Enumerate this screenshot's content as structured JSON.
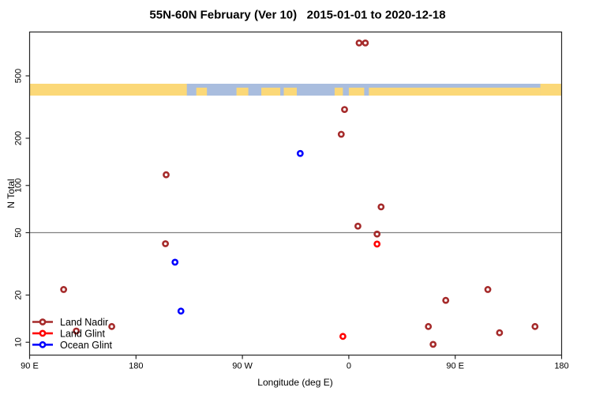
{
  "chart": {
    "title": "55N-60N February (Ver 10)   2015-01-01 to 2020-12-18",
    "xlabel": "Longitude (deg E)",
    "ylabel": "N Total"
  },
  "chart_data": {
    "type": "scatter",
    "title": "55N-60N February (Ver 10)   2015-01-01 to 2020-12-18",
    "xlabel": "Longitude (deg E)",
    "ylabel": "N Total",
    "x_axis": {
      "wrapped_longitude": true,
      "range": [
        90,
        540
      ],
      "ticks": [
        {
          "lon": 90,
          "label": "90 E"
        },
        {
          "lon": 180,
          "label": "180"
        },
        {
          "lon": 270,
          "label": "90 W"
        },
        {
          "lon": 360,
          "label": "0"
        },
        {
          "lon": 450,
          "label": "90 E"
        },
        {
          "lon": 540,
          "label": "180"
        }
      ]
    },
    "y_axis": {
      "scale": "log",
      "range": [
        8.2,
        960
      ],
      "ticks": [
        {
          "n": 500,
          "label": "500"
        },
        {
          "n": 200,
          "label": "200"
        },
        {
          "n": 100,
          "label": "100"
        },
        {
          "n": 50,
          "label": "50"
        },
        {
          "n": 20,
          "label": "20"
        },
        {
          "n": 10,
          "label": "10"
        }
      ]
    },
    "reference_line_n": 50,
    "map_band": {
      "n_range": [
        374,
        445
      ],
      "ocean_color": "#A9BDDE",
      "land_color": "#FBD878",
      "segments": [
        {
          "from": 90,
          "to": 223,
          "row": "full"
        },
        {
          "from": 231,
          "to": 240,
          "row": "bottom"
        },
        {
          "from": 265,
          "to": 275,
          "row": "bottom"
        },
        {
          "from": 286,
          "to": 302,
          "row": "bottom"
        },
        {
          "from": 305,
          "to": 316,
          "row": "bottom"
        },
        {
          "from": 348,
          "to": 355,
          "row": "bottom"
        },
        {
          "from": 360,
          "to": 373,
          "row": "bottom"
        },
        {
          "from": 377,
          "to": 522,
          "row": "bottom"
        },
        {
          "from": 522,
          "to": 540,
          "row": "full"
        }
      ]
    },
    "series": [
      {
        "name": "Land Nadir",
        "color": "#A52A2A",
        "points": [
          {
            "lon": 368.7,
            "n": 810
          },
          {
            "lon": 374.0,
            "n": 810
          },
          {
            "lon": 356.4,
            "n": 305
          },
          {
            "lon": 353.6,
            "n": 212
          },
          {
            "lon": 205.5,
            "n": 117
          },
          {
            "lon": 387.3,
            "n": 73
          },
          {
            "lon": 367.7,
            "n": 55
          },
          {
            "lon": 383.9,
            "n": 49
          },
          {
            "lon": 204.9,
            "n": 42.5
          },
          {
            "lon": 118.8,
            "n": 21.7
          },
          {
            "lon": 477.6,
            "n": 21.7
          },
          {
            "lon": 442.0,
            "n": 18.5
          },
          {
            "lon": 159.5,
            "n": 12.6
          },
          {
            "lon": 427.3,
            "n": 12.6
          },
          {
            "lon": 517.5,
            "n": 12.6
          },
          {
            "lon": 129.5,
            "n": 11.8
          },
          {
            "lon": 487.5,
            "n": 11.5
          },
          {
            "lon": 431.3,
            "n": 9.7
          }
        ]
      },
      {
        "name": "Land Glint",
        "color": "#FF0000",
        "points": [
          {
            "lon": 383.9,
            "n": 42.3
          },
          {
            "lon": 355.0,
            "n": 10.9
          }
        ]
      },
      {
        "name": "Ocean Glint",
        "color": "#0000FF",
        "points": [
          {
            "lon": 318.9,
            "n": 160
          },
          {
            "lon": 213.0,
            "n": 32.4
          },
          {
            "lon": 218.0,
            "n": 15.8
          }
        ]
      }
    ],
    "legend": {
      "position": "bottom-left",
      "entries": [
        "Land Nadir",
        "Land Glint",
        "Ocean Glint"
      ]
    },
    "style": {
      "axis_color": "#262626",
      "ref_line_color": "#808080",
      "background": "#ffffff"
    }
  }
}
